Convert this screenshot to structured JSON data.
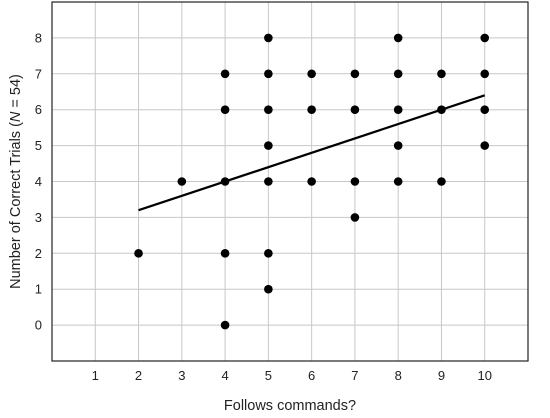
{
  "chart_data": {
    "type": "scatter",
    "title": "",
    "xlabel": "Follows commands?",
    "ylabel": {
      "prefix": "Number of Correct Trials (",
      "italic": "N",
      "suffix": " = 54)"
    },
    "xlim": [
      0,
      11
    ],
    "ylim": [
      -1,
      9
    ],
    "xticks": [
      1,
      2,
      3,
      4,
      5,
      6,
      7,
      8,
      9,
      10
    ],
    "yticks": [
      0,
      1,
      2,
      3,
      4,
      5,
      6,
      7,
      8
    ],
    "grid": true,
    "points": [
      [
        2,
        2
      ],
      [
        3,
        4
      ],
      [
        4,
        0
      ],
      [
        4,
        2
      ],
      [
        4,
        4
      ],
      [
        4,
        6
      ],
      [
        4,
        7
      ],
      [
        5,
        1
      ],
      [
        5,
        2
      ],
      [
        5,
        4
      ],
      [
        5,
        5
      ],
      [
        5,
        6
      ],
      [
        5,
        7
      ],
      [
        5,
        8
      ],
      [
        6,
        4
      ],
      [
        6,
        6
      ],
      [
        6,
        7
      ],
      [
        7,
        3
      ],
      [
        7,
        4
      ],
      [
        7,
        6
      ],
      [
        7,
        7
      ],
      [
        8,
        4
      ],
      [
        8,
        5
      ],
      [
        8,
        6
      ],
      [
        8,
        7
      ],
      [
        8,
        8
      ],
      [
        9,
        4
      ],
      [
        9,
        6
      ],
      [
        9,
        7
      ],
      [
        10,
        5
      ],
      [
        10,
        6
      ],
      [
        10,
        7
      ],
      [
        10,
        8
      ]
    ],
    "trendline": {
      "x": [
        2,
        10
      ],
      "y": [
        3.2,
        6.4
      ]
    },
    "colors": {
      "points": "#000000",
      "line": "#000000",
      "grid": "#c8c8c8"
    }
  }
}
